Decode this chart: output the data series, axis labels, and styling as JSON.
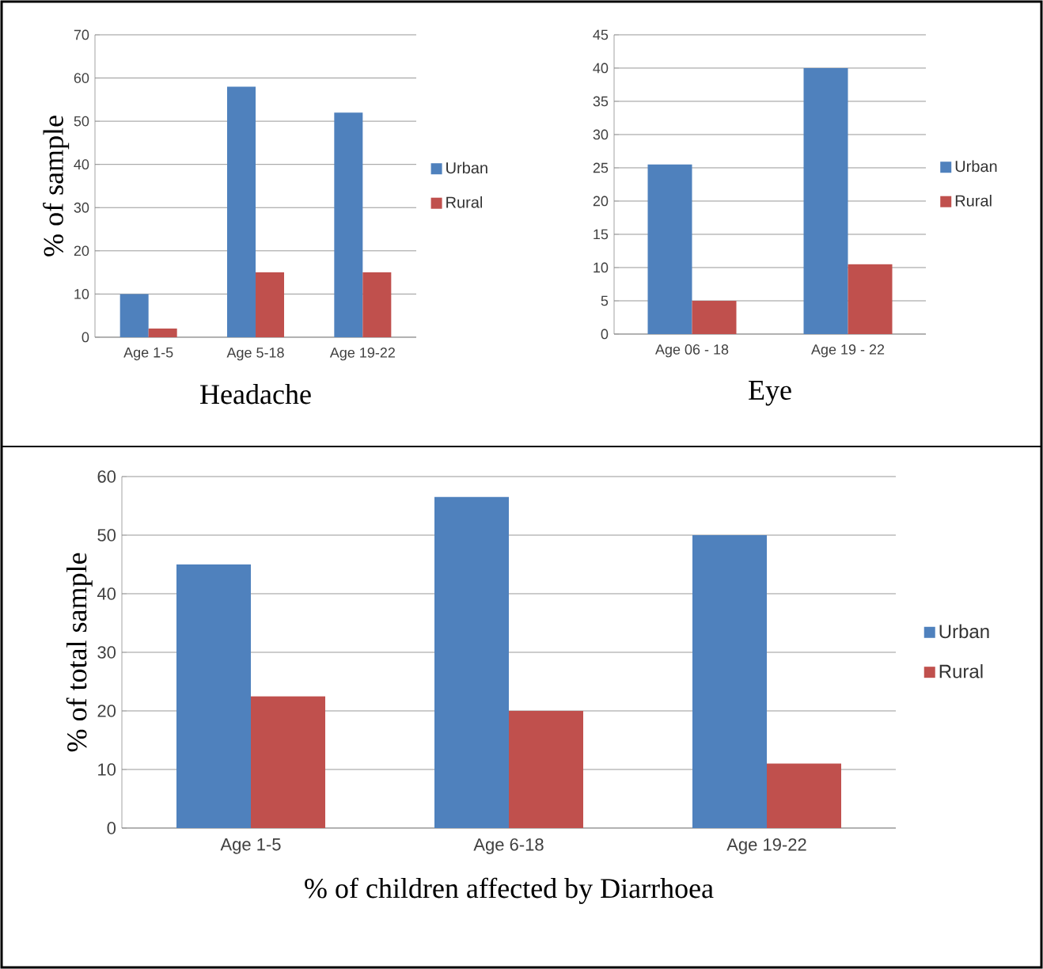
{
  "chart_data": [
    {
      "type": "bar",
      "xlabel": "Headache",
      "ylabel": "% of sample",
      "categories": [
        "Age 1-5",
        "Age 5-18",
        "Age 19-22"
      ],
      "series": [
        {
          "name": "Urban",
          "color": "#4f81bd",
          "values": [
            10,
            58,
            52
          ]
        },
        {
          "name": "Rural",
          "color": "#c0504d",
          "values": [
            2,
            15,
            15
          ]
        }
      ],
      "ylim": [
        0,
        70
      ],
      "yticks": [
        0,
        10,
        20,
        30,
        40,
        50,
        60,
        70
      ],
      "grid": "y",
      "legend": "right"
    },
    {
      "type": "bar",
      "xlabel": "Eye",
      "categories": [
        "Age 06 - 18",
        "Age 19 - 22"
      ],
      "series": [
        {
          "name": "Urban",
          "color": "#4f81bd",
          "values": [
            25.5,
            40
          ]
        },
        {
          "name": "Rural",
          "color": "#c0504d",
          "values": [
            5,
            10.5
          ]
        }
      ],
      "ylim": [
        0,
        45
      ],
      "yticks": [
        0,
        5,
        10,
        15,
        20,
        25,
        30,
        35,
        40,
        45
      ],
      "grid": "y",
      "legend": "right"
    },
    {
      "type": "bar",
      "xlabel": "% of children affected by Diarrhoea",
      "ylabel": "% of total sample",
      "categories": [
        "Age 1-5",
        "Age 6-18",
        "Age 19-22"
      ],
      "series": [
        {
          "name": "Urban",
          "color": "#4f81bd",
          "values": [
            45,
            56.5,
            50
          ]
        },
        {
          "name": "Rural",
          "color": "#c0504d",
          "values": [
            22.5,
            20,
            11
          ]
        }
      ],
      "ylim": [
        0,
        60
      ],
      "yticks": [
        0,
        10,
        20,
        30,
        40,
        50,
        60
      ],
      "grid": "y",
      "legend": "right"
    }
  ]
}
